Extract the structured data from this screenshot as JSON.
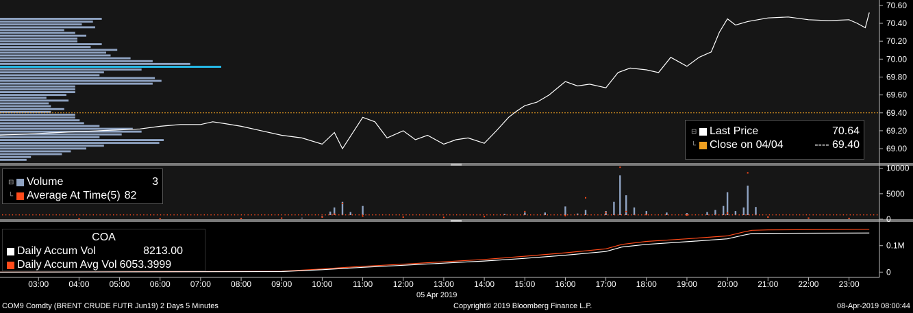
{
  "footer": {
    "security": "COM9 Comdty (BRENT CRUDE FUTR  Jun19) 2 Days 5 Minutes",
    "copyright": "Copyright© 2019 Bloomberg Finance L.P.",
    "timestamp": "08-Apr-2019 08:00:44"
  },
  "colors": {
    "background": "#000000",
    "panel1_bg": "#161616",
    "panel2_bg": "#161616",
    "separator": "#7a7a7a",
    "price_line": "#ffffff",
    "close_line": "#f0a020",
    "volume_profile": "#8fa3c2",
    "volume_profile_highlight": "#25b8e6",
    "volume_bars": "#8fa3c2",
    "avg_dots": "#ff4a1a",
    "accum_vol": "#ffffff",
    "accum_avg": "#ff4a1a"
  },
  "legend_price": {
    "last_price_label": "Last Price",
    "last_price_value": "70.64",
    "close_label": "Close on 04/04",
    "close_value": "---- 69.40"
  },
  "legend_volume": {
    "volume_label": "Volume",
    "volume_value": "3",
    "avg_label": "Average At Time(5)",
    "avg_value": "82"
  },
  "legend_accum": {
    "title": "COA",
    "accum_vol_label": "Daily Accum Vol",
    "accum_vol_value": "8213.00",
    "accum_avg_label": "Daily Accum Avg Vol",
    "accum_avg_value": "6053.3999"
  },
  "chart_data": [
    {
      "type": "line",
      "panel": "price",
      "ylim": [
        68.84,
        70.66
      ],
      "y_ticks": [
        "70.60",
        "70.40",
        "70.20",
        "70.00",
        "69.80",
        "69.60",
        "69.40",
        "69.20",
        "69.00"
      ],
      "y_tick_values": [
        70.6,
        70.4,
        70.2,
        70.0,
        69.8,
        69.6,
        69.4,
        69.2,
        69.0
      ],
      "grid": false,
      "series": [
        {
          "name": "Last Price",
          "x": [
            2.0,
            2.5,
            3.0,
            3.5,
            4.0,
            4.5,
            5.0,
            5.5,
            6.0,
            6.5,
            7.0,
            7.3,
            7.6,
            8.0,
            8.5,
            9.0,
            9.5,
            10.0,
            10.3,
            10.5,
            10.7,
            11.0,
            11.3,
            11.6,
            12.0,
            12.3,
            12.6,
            13.0,
            13.3,
            13.6,
            14.0,
            14.3,
            14.6,
            14.8,
            15.0,
            15.3,
            15.6,
            16.0,
            16.3,
            16.6,
            17.0,
            17.3,
            17.6,
            18.0,
            18.3,
            18.6,
            19.0,
            19.3,
            19.6,
            19.8,
            20.0,
            20.2,
            20.5,
            21.0,
            21.5,
            22.0,
            22.5,
            23.0,
            23.2,
            23.4,
            23.5
          ],
          "y": [
            69.15,
            69.16,
            69.17,
            69.18,
            69.19,
            69.2,
            69.21,
            69.22,
            69.25,
            69.27,
            69.27,
            69.3,
            69.28,
            69.25,
            69.2,
            69.15,
            69.12,
            69.05,
            69.18,
            69.0,
            69.14,
            69.35,
            69.3,
            69.12,
            69.2,
            69.1,
            69.15,
            69.05,
            69.1,
            69.12,
            69.06,
            69.2,
            69.35,
            69.42,
            69.48,
            69.52,
            69.6,
            69.75,
            69.7,
            69.72,
            69.68,
            69.85,
            69.9,
            69.88,
            69.85,
            70.02,
            69.92,
            70.02,
            70.08,
            70.3,
            70.45,
            70.38,
            70.42,
            70.46,
            70.47,
            70.44,
            70.43,
            70.44,
            70.4,
            70.35,
            70.52
          ]
        },
        {
          "name": "Close on 04/04",
          "value": 69.4
        }
      ],
      "volume_profile": [
        0.46,
        0.42,
        0.37,
        0.43,
        0.29,
        0.34,
        0.39,
        0.35,
        0.35,
        0.46,
        0.41,
        0.53,
        0.48,
        0.5,
        0.59,
        0.69,
        0.86,
        1.0,
        0.64,
        0.47,
        0.45,
        0.7,
        0.73,
        0.69,
        0.34,
        0.34,
        0.34,
        0.3,
        0.21,
        0.31,
        0.22,
        0.23,
        0.29,
        0.23,
        0.34,
        0.34,
        0.36,
        0.38,
        0.45,
        0.6,
        0.64,
        0.55,
        0.45,
        0.74,
        0.72,
        0.47,
        0.39,
        0.32,
        0.28,
        0.14,
        0.12
      ]
    },
    {
      "type": "bar",
      "panel": "volume",
      "ylim": [
        0,
        10500
      ],
      "y_ticks": [
        "10000",
        "5000",
        "0"
      ],
      "y_tick_values": [
        10000,
        5000,
        0
      ],
      "series": [
        {
          "name": "Volume",
          "x": [
            9.5,
            10.0,
            10.2,
            10.3,
            10.5,
            10.7,
            11.0,
            14.5,
            15.0,
            15.5,
            16.0,
            16.3,
            16.5,
            17.0,
            17.2,
            17.35,
            17.5,
            17.7,
            18.0,
            18.5,
            19.0,
            19.5,
            19.7,
            19.9,
            20.0,
            20.2,
            20.4,
            20.5,
            20.7,
            21.0,
            22.0,
            23.0
          ],
          "y": [
            300,
            600,
            1500,
            2300,
            3400,
            1400,
            2600,
            1000,
            1300,
            1300,
            2500,
            1100,
            1800,
            1600,
            3400,
            8600,
            4700,
            2300,
            1600,
            1300,
            1200,
            1400,
            1800,
            2600,
            5300,
            1600,
            2300,
            6600,
            2400,
            500,
            300,
            200
          ]
        },
        {
          "name": "Average At Time(5)",
          "x": [
            2.0,
            4.0,
            6.0,
            8.0,
            9.0,
            10.0,
            10.3,
            10.5,
            11.0,
            12.0,
            13.0,
            14.0,
            15.0,
            16.0,
            16.5,
            17.0,
            17.35,
            17.5,
            18.0,
            19.0,
            20.0,
            20.5,
            21.0,
            22.0,
            23.0
          ],
          "y": [
            100,
            80,
            90,
            120,
            200,
            400,
            1000,
            3100,
            600,
            400,
            350,
            500,
            1500,
            700,
            4200,
            1300,
            10200,
            1500,
            900,
            800,
            1200,
            9100,
            400,
            200,
            150
          ]
        }
      ]
    },
    {
      "type": "line",
      "panel": "accumulation",
      "ylim": [
        -20000,
        190000
      ],
      "y_ticks": [
        "0.1M",
        "0"
      ],
      "y_tick_values": [
        100000,
        0
      ],
      "series": [
        {
          "name": "Daily Accum Vol",
          "x": [
            2.0,
            9.0,
            10.0,
            11.0,
            12.0,
            13.0,
            14.0,
            15.0,
            16.0,
            17.0,
            17.4,
            18.0,
            19.0,
            20.0,
            20.4,
            20.6,
            21.0,
            23.5
          ],
          "y": [
            0,
            2000,
            9000,
            18000,
            26000,
            34000,
            42000,
            52000,
            64000,
            78000,
            95000,
            105000,
            115000,
            126000,
            140000,
            146000,
            147000,
            148000
          ]
        },
        {
          "name": "Daily Accum Avg Vol",
          "x": [
            2.0,
            9.0,
            10.0,
            11.0,
            12.0,
            13.0,
            14.0,
            15.0,
            16.0,
            17.0,
            17.4,
            18.0,
            19.0,
            20.0,
            20.4,
            20.6,
            21.0,
            23.5
          ],
          "y": [
            0,
            3000,
            12000,
            22000,
            30000,
            39000,
            48000,
            60000,
            73000,
            88000,
            105000,
            116000,
            126000,
            137000,
            152000,
            158000,
            160000,
            162000
          ]
        }
      ]
    }
  ],
  "x_axis": {
    "tick_labels": [
      "03:00",
      "04:00",
      "05:00",
      "06:00",
      "07:00",
      "08:00",
      "09:00",
      "10:00",
      "11:00",
      "12:00",
      "13:00",
      "14:00",
      "15:00",
      "16:00",
      "17:00",
      "18:00",
      "19:00",
      "20:00",
      "21:00",
      "22:00",
      "23:00"
    ],
    "tick_hours": [
      3,
      4,
      5,
      6,
      7,
      8,
      9,
      10,
      11,
      12,
      13,
      14,
      15,
      16,
      17,
      18,
      19,
      20,
      21,
      22,
      23
    ],
    "range_hours": [
      2.05,
      23.75
    ],
    "date_label": "05 Apr 2019"
  }
}
